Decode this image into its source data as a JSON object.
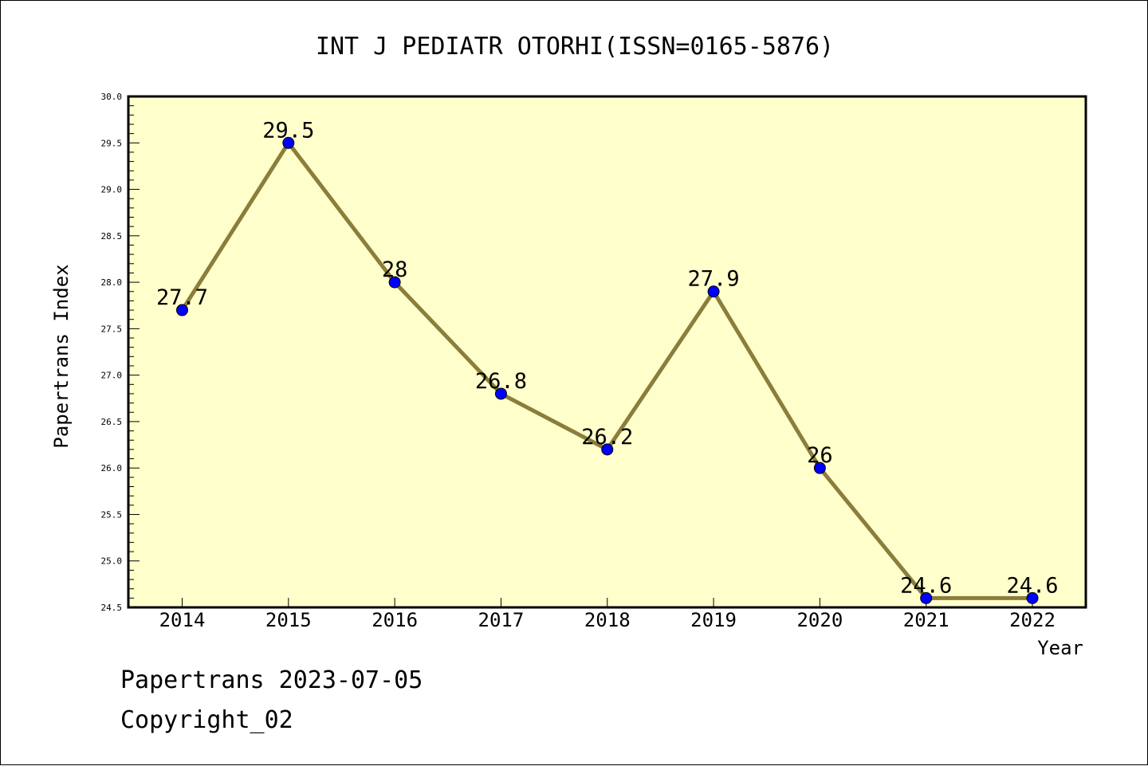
{
  "chart_data": {
    "type": "line",
    "title": "INT J PEDIATR OTORHI(ISSN=0165-5876)",
    "xlabel": "Year",
    "ylabel": "Papertrans Index",
    "categories": [
      "2014",
      "2015",
      "2016",
      "2017",
      "2018",
      "2019",
      "2020",
      "2021",
      "2022"
    ],
    "values": [
      27.7,
      29.5,
      28,
      26.8,
      26.2,
      27.9,
      26,
      24.6,
      24.6
    ],
    "data_labels": [
      "27.7",
      "29.5",
      "28",
      "26.8",
      "26.2",
      "27.9",
      "26",
      "24.6",
      "24.6"
    ],
    "ylim": [
      24.5,
      30.0
    ],
    "yticks": [
      "24.5",
      "25.0",
      "25.5",
      "26.0",
      "26.5",
      "27.0",
      "27.5",
      "28.0",
      "28.5",
      "29.0",
      "29.5",
      "30.0"
    ],
    "grid": false,
    "colors": {
      "plot_background": "#ffffcc",
      "line": "#8b7d3a",
      "marker": "#0000ff"
    }
  },
  "footer": {
    "line1": "Papertrans 2023-07-05",
    "line2": "Copyright_02"
  }
}
